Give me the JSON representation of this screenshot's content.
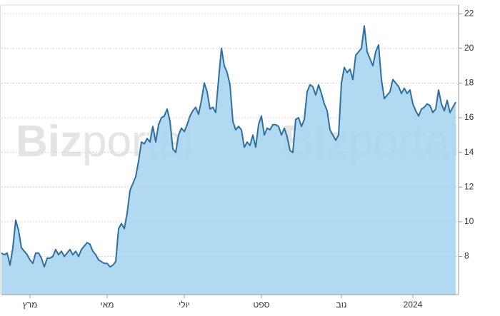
{
  "chart_data": {
    "type": "area",
    "watermark": {
      "bold": "Biz",
      "light": "portal"
    },
    "values": [
      8.2,
      8.1,
      8.2,
      7.5,
      8.5,
      10.1,
      9.5,
      8.5,
      8.3,
      8.1,
      7.8,
      7.6,
      8.2,
      8.2,
      7.9,
      7.4,
      7.9,
      7.9,
      8.0,
      8.4,
      8.1,
      8.3,
      8.0,
      8.2,
      8.4,
      8.1,
      8.3,
      8.0,
      8.4,
      8.6,
      8.8,
      8.7,
      8.3,
      8.1,
      7.8,
      7.7,
      7.6,
      7.6,
      7.4,
      7.5,
      7.7,
      9.6,
      9.9,
      9.6,
      10.5,
      11.8,
      12.2,
      12.6,
      13.5,
      14.6,
      14.5,
      14.8,
      14.6,
      15.5,
      14.6,
      15.6,
      16.0,
      16.1,
      16.5,
      15.8,
      14.2,
      14.0,
      15.0,
      15.4,
      15.2,
      15.6,
      16.1,
      16.4,
      16.6,
      16.2,
      17.0,
      18.0,
      17.5,
      16.5,
      16.6,
      16.3,
      18.2,
      20.0,
      19.0,
      18.6,
      17.9,
      15.8,
      15.3,
      15.5,
      15.3,
      14.3,
      14.6,
      14.4,
      15.0,
      14.3,
      15.6,
      16.1,
      15.0,
      15.4,
      15.3,
      15.6,
      15.6,
      15.5,
      15.0,
      15.4,
      14.9,
      14.1,
      14.0,
      15.9,
      16.0,
      15.5,
      15.9,
      17.5,
      17.9,
      17.8,
      17.3,
      17.9,
      17.4,
      16.8,
      16.4,
      15.3,
      15.0,
      14.7,
      15.0,
      18.0,
      18.9,
      18.6,
      18.8,
      18.2,
      19.6,
      19.8,
      20.0,
      21.3,
      19.8,
      19.4,
      19.0,
      19.8,
      20.2,
      18.2,
      17.1,
      17.3,
      17.5,
      18.2,
      18.0,
      17.8,
      17.4,
      17.7,
      17.4,
      17.6,
      16.8,
      16.4,
      16.1,
      16.5,
      16.6,
      16.8,
      16.7,
      16.3,
      16.5,
      17.6,
      16.8,
      16.4,
      17.0,
      16.3,
      16.6,
      16.9
    ],
    "color": "#2f6f9f",
    "fill": "#a9d5f0",
    "xticks": [
      {
        "value": 10,
        "label": "מרץ"
      },
      {
        "value": 37,
        "label": "מאי"
      },
      {
        "value": 64,
        "label": "יולי"
      },
      {
        "value": 91,
        "label": "ספט"
      },
      {
        "value": 119,
        "label": "נוב"
      },
      {
        "value": 144,
        "label": "2024"
      }
    ],
    "ylim": [
      5.8,
      22.5
    ],
    "yticks": [
      8,
      10,
      12,
      14,
      16,
      18,
      20,
      22
    ],
    "grid": true
  }
}
